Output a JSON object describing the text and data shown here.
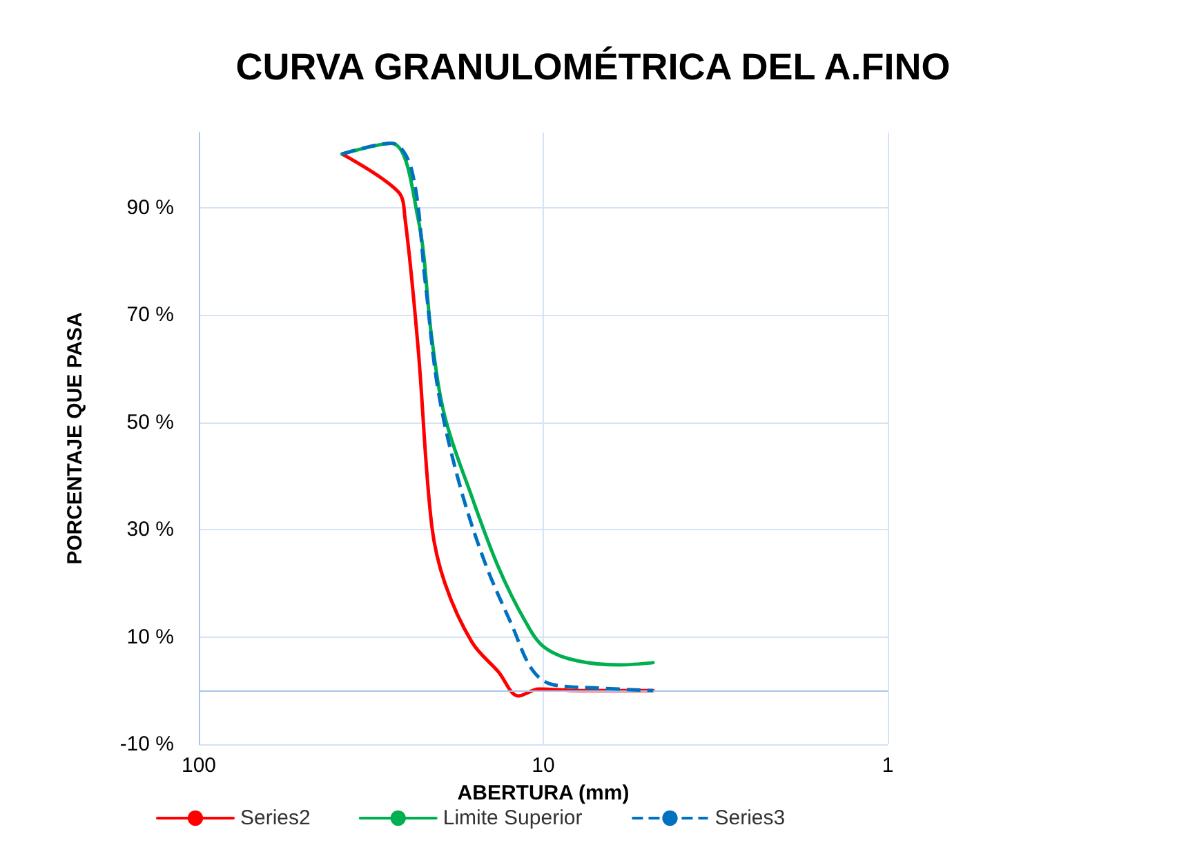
{
  "chart_data": {
    "type": "line",
    "title": "CURVA GRANULOMÉTRICA DEL A.FINO",
    "xlabel": "ABERTURA (mm)",
    "ylabel": "PORCENTAJE QUE PASA",
    "log": "x",
    "xlim": [
      100,
      1
    ],
    "xticks": [
      100,
      10,
      1
    ],
    "ylim": [
      -10,
      104
    ],
    "yticks": [
      {
        "value": -10,
        "label": "-10 %"
      },
      {
        "value": 10,
        "label": "10 %"
      },
      {
        "value": 30,
        "label": "30 %"
      },
      {
        "value": 50,
        "label": "50 %"
      },
      {
        "value": 70,
        "label": "70 %"
      },
      {
        "value": 90,
        "label": "90 %"
      }
    ],
    "grid": true,
    "legend": "bottom",
    "marker": "none",
    "ref_lines": [
      {
        "axis": "y",
        "value": 0,
        "color": "#a9c4ea"
      }
    ],
    "series": [
      {
        "name": "Series2",
        "color": "#ff0000",
        "x": [
          38.4,
          26.4,
          25.2,
          23.1,
          21.1,
          19.3,
          16.1,
          13.5,
          11.8,
          10.3,
          7.9,
          4.8
        ],
        "values": [
          100,
          93,
          88,
          64,
          31,
          20,
          9,
          3.5,
          -1,
          0.3,
          0,
          0
        ]
      },
      {
        "name": "Limite Superior",
        "color": "#00b050",
        "x": [
          38.4,
          27.6,
          23.1,
          21.1,
          19.3,
          16.1,
          13.5,
          11.3,
          9.9,
          7.9,
          6.0,
          4.8
        ],
        "values": [
          100,
          102,
          88,
          66,
          51,
          36,
          23,
          13,
          8,
          5.5,
          4.8,
          5.2
        ]
      },
      {
        "name": "Series3",
        "color": "#0070c0",
        "line_style": "dashed",
        "x": [
          38.4,
          27.6,
          24.1,
          22.0,
          20.2,
          17.6,
          14.8,
          12.3,
          10.8,
          9.5,
          7.0,
          4.8
        ],
        "values": [
          100,
          102,
          97,
          76,
          56,
          39,
          24,
          12,
          4,
          1.2,
          0.5,
          0
        ]
      }
    ]
  }
}
